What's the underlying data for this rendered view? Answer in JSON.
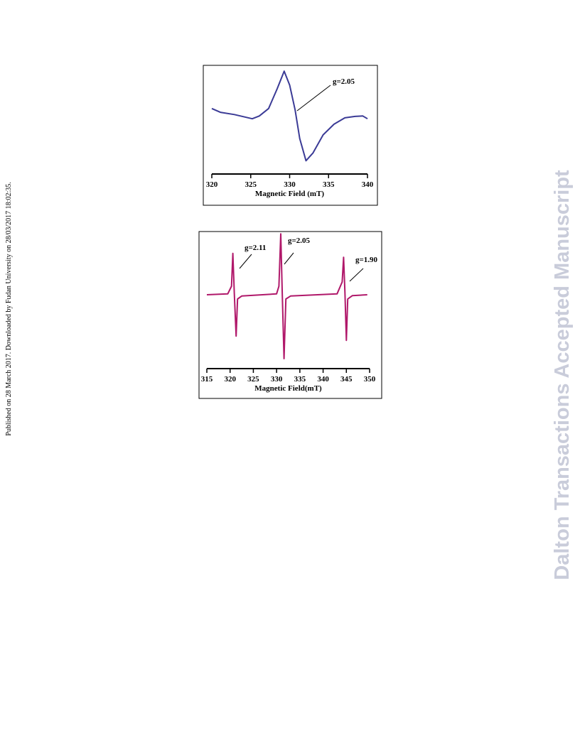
{
  "side_note": "Published on 28 March 2017. Downloaded by Fudan University on 28/03/2017 18:02:35.",
  "watermark": "Dalton Transactions Accepted Manuscript",
  "chart_data": [
    {
      "type": "line",
      "x_label": "Magnetic Field (mT)",
      "color": "#3b3b96",
      "x": [
        320.0,
        321.1,
        322.9,
        325.2,
        326.1,
        327.3,
        328.4,
        329.3,
        330.0,
        330.7,
        331.3,
        332.1,
        333.0,
        334.3,
        335.7,
        337.1,
        338.4,
        339.4,
        340.0
      ],
      "values": [
        0.11,
        0.03,
        -0.02,
        -0.11,
        -0.05,
        0.11,
        0.54,
        0.92,
        0.62,
        0.08,
        -0.54,
        -1.02,
        -0.85,
        -0.46,
        -0.23,
        -0.09,
        -0.06,
        -0.05,
        -0.11
      ],
      "xlim": [
        320,
        340
      ],
      "xticks": [
        320,
        325,
        330,
        335,
        340
      ],
      "ylim": [
        -1.3,
        1.3
      ],
      "annotations": [
        {
          "text": "g=2.05"
        }
      ]
    },
    {
      "type": "line",
      "x_label": "Magnetic Field(mT)",
      "color": "#b0186a",
      "x": [
        315.0,
        319.5,
        320.3,
        320.6,
        320.9,
        321.3,
        321.6,
        322.5,
        330.0,
        330.5,
        330.9,
        331.2,
        331.6,
        332.0,
        333.0,
        343.0,
        344.1,
        344.4,
        344.7,
        345.0,
        345.3,
        346.3,
        349.5
      ],
      "values": [
        0,
        0.02,
        0.2,
        0.97,
        0.05,
        -0.97,
        -0.1,
        -0.03,
        0.02,
        0.2,
        1.43,
        0.1,
        -1.5,
        -0.1,
        -0.03,
        0.02,
        0.3,
        0.88,
        0.05,
        -1.07,
        -0.1,
        -0.02,
        0
      ],
      "xlim": [
        315,
        350
      ],
      "xticks": [
        315,
        320,
        325,
        330,
        335,
        340,
        345,
        350
      ],
      "ylim": [
        -1.7,
        1.7
      ],
      "annotations": [
        {
          "text": "g=2.11"
        },
        {
          "text": "g=2.05"
        },
        {
          "text": "g=1.90"
        }
      ]
    }
  ]
}
